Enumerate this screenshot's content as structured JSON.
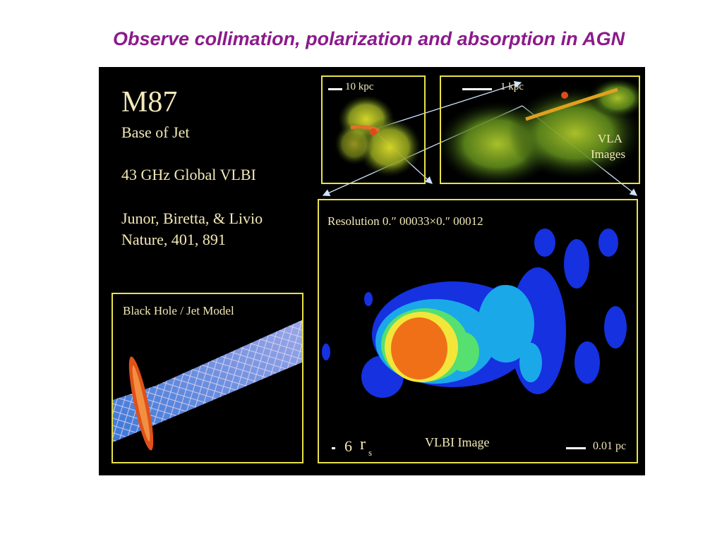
{
  "slide": {
    "title": "Observe collimation, polarization and absorption in AGN"
  },
  "panel": {
    "object": "M87",
    "subtitle": "Base of Jet",
    "observation": "43 GHz Global VLBI",
    "authors": "Junor, Biretta, & Livio",
    "journal": "Nature, 401, 891"
  },
  "vla_left": {
    "scale_label": "10 kpc"
  },
  "vla_right": {
    "scale_label": "1 kpc",
    "caption_line1": "VLA",
    "caption_line2": "Images"
  },
  "vlbi": {
    "resolution": "Resolution 0.″ 00033×0.″ 00012",
    "caption": "VLBI Image",
    "rs_value": "6",
    "rs_symbol": "r",
    "rs_subscript": "s",
    "scale_label": "0.01 pc"
  },
  "model": {
    "title": "Black Hole / Jet Model"
  },
  "colors": {
    "title": "#8b1a8b",
    "frame": "#e9e14a",
    "panel_text": "#f3e9b8"
  }
}
